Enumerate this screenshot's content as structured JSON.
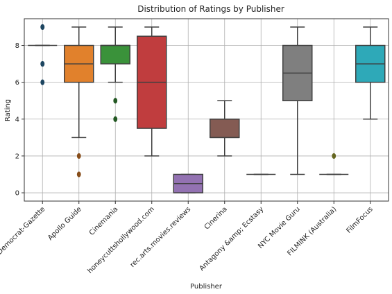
{
  "chart_data": {
    "type": "box",
    "title": "Distribution of Ratings by Publisher",
    "xlabel": "Publisher",
    "ylabel": "Rating",
    "ylim": [
      -0.45,
      9.45
    ],
    "yticks": [
      0,
      2,
      4,
      6,
      8
    ],
    "grid": true,
    "categories": [
      "Arkansas Democrat-Gazette",
      "Apollo Guide",
      "Cinemania",
      "honeycuttshollywood.com",
      "rec.arts.movies.reviews",
      "Cinerina",
      "Antagony &amp; Ecstasy",
      "NYC Movie Guru",
      "FILMINK (Australia)",
      "FilmFocus"
    ],
    "boxes": [
      {
        "q1": 8,
        "median": 8,
        "q3": 8,
        "whisker_low": 8,
        "whisker_high": 8,
        "outliers": [
          9,
          9,
          7,
          7,
          6
        ],
        "color": "#3274a1"
      },
      {
        "q1": 6,
        "median": 7,
        "q3": 8,
        "whisker_low": 3,
        "whisker_high": 9,
        "outliers": [
          2,
          1
        ],
        "color": "#e1812c"
      },
      {
        "q1": 7,
        "median": 8,
        "q3": 8,
        "whisker_low": 6,
        "whisker_high": 9,
        "outliers": [
          5,
          4
        ],
        "color": "#3a923a"
      },
      {
        "q1": 3.5,
        "median": 6,
        "q3": 8.5,
        "whisker_low": 2,
        "whisker_high": 9,
        "outliers": [],
        "color": "#c03d3e"
      },
      {
        "q1": 0,
        "median": 0.5,
        "q3": 1,
        "whisker_low": 0,
        "whisker_high": 1,
        "outliers": [],
        "color": "#9372b2"
      },
      {
        "q1": 3,
        "median": 3,
        "q3": 4,
        "whisker_low": 2,
        "whisker_high": 5,
        "outliers": [],
        "color": "#845b53"
      },
      {
        "q1": 1,
        "median": 1,
        "q3": 1,
        "whisker_low": 1,
        "whisker_high": 1,
        "outliers": [],
        "color": "#d684bd"
      },
      {
        "q1": 5,
        "median": 6.5,
        "q3": 8,
        "whisker_low": 1,
        "whisker_high": 9,
        "outliers": [],
        "color": "#7f7f7f"
      },
      {
        "q1": 1,
        "median": 1,
        "q3": 1,
        "whisker_low": 1,
        "whisker_high": 1,
        "outliers": [
          2
        ],
        "color": "#a9aa35"
      },
      {
        "q1": 6,
        "median": 7,
        "q3": 8,
        "whisker_low": 4,
        "whisker_high": 9,
        "outliers": [],
        "color": "#2ea9b8"
      }
    ]
  }
}
